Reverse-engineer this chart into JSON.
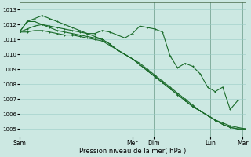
{
  "background_color": "#cce8e2",
  "grid_color": "#99ccc6",
  "line_color": "#1a6b2a",
  "xlabel": "Pression niveau de la mer( hPa )",
  "ylim": [
    1004.5,
    1013.5
  ],
  "yticks": [
    1005,
    1006,
    1007,
    1008,
    1009,
    1010,
    1011,
    1012,
    1013
  ],
  "xlim": [
    0,
    180
  ],
  "day_positions": [
    0,
    90,
    107,
    152,
    178
  ],
  "day_labels": [
    "Sam",
    "Mer",
    "Dim",
    "Lun",
    "Mar"
  ],
  "line1": {
    "x": [
      0,
      6,
      12,
      18,
      24,
      30,
      36,
      42,
      48,
      54,
      60,
      66,
      72,
      78,
      84,
      90,
      96,
      102,
      108,
      114,
      120,
      126,
      132,
      138,
      144,
      150,
      156,
      162,
      168,
      174,
      180
    ],
    "y": [
      1011.5,
      1011.5,
      1011.6,
      1011.6,
      1011.5,
      1011.4,
      1011.3,
      1011.3,
      1011.2,
      1011.1,
      1011.0,
      1010.9,
      1010.6,
      1010.3,
      1010.0,
      1009.7,
      1009.4,
      1009.0,
      1008.6,
      1008.2,
      1007.8,
      1007.4,
      1007.0,
      1006.6,
      1006.2,
      1005.9,
      1005.6,
      1005.4,
      1005.2,
      1005.1,
      1005.0
    ]
  },
  "line2": {
    "x": [
      0,
      6,
      12,
      18,
      24,
      30,
      36,
      42,
      48,
      54,
      60,
      66,
      72,
      78,
      84,
      90,
      96,
      102,
      108,
      114,
      120,
      126,
      132,
      138,
      144,
      150,
      156,
      162,
      168,
      174,
      180
    ],
    "y": [
      1011.5,
      1011.7,
      1011.9,
      1012.0,
      1011.9,
      1011.8,
      1011.7,
      1011.6,
      1011.5,
      1011.4,
      1011.2,
      1011.0,
      1010.7,
      1010.3,
      1010.0,
      1009.7,
      1009.3,
      1008.9,
      1008.5,
      1008.1,
      1007.7,
      1007.3,
      1006.9,
      1006.5,
      1006.2,
      1005.9,
      1005.6,
      1005.3,
      1005.1,
      1005.0,
      1005.0
    ]
  },
  "line3": {
    "x": [
      0,
      6,
      12,
      18,
      24,
      30,
      36,
      42,
      48,
      54,
      60,
      66,
      72,
      78,
      84,
      90,
      96,
      102,
      108,
      114,
      120,
      126,
      132,
      138,
      144,
      150,
      156,
      162,
      168,
      174,
      180
    ],
    "y": [
      1011.5,
      1012.2,
      1012.2,
      1012.0,
      1011.8,
      1011.6,
      1011.5,
      1011.4,
      1011.3,
      1011.2,
      1011.1,
      1011.0,
      1010.7,
      1010.3,
      1010.0,
      1009.7,
      1009.3,
      1008.9,
      1008.5,
      1008.1,
      1007.7,
      1007.3,
      1006.9,
      1006.5,
      1006.2,
      1005.9,
      1005.6,
      1005.3,
      1005.1,
      1005.0,
      1005.0
    ]
  },
  "line4": {
    "x": [
      0,
      6,
      12,
      18,
      24,
      30,
      36,
      42,
      48,
      54,
      60,
      66,
      72,
      78,
      84,
      90,
      96,
      102,
      108,
      114,
      120,
      126,
      132,
      138,
      144,
      150,
      156,
      162,
      168,
      174
    ],
    "y": [
      1011.5,
      1012.2,
      1012.4,
      1012.6,
      1012.4,
      1012.2,
      1012.0,
      1011.8,
      1011.6,
      1011.4,
      1011.4,
      1011.6,
      1011.5,
      1011.3,
      1011.1,
      1011.4,
      1011.9,
      1011.8,
      1011.7,
      1011.5,
      1009.9,
      1009.1,
      1009.4,
      1009.2,
      1008.7,
      1007.8,
      1007.5,
      1007.8,
      1006.3,
      1006.9
    ]
  },
  "line5": {
    "x": [
      108,
      114,
      120,
      126,
      132,
      138,
      144,
      150,
      156,
      162,
      168,
      174,
      180
    ],
    "y": [
      1011.5,
      1011.8,
      1011.8,
      1011.7,
      1009.9,
      1009.2,
      1008.8,
      1007.8,
      1007.5,
      1006.3,
      1006.3,
      1005.2,
      1005.0
    ]
  }
}
